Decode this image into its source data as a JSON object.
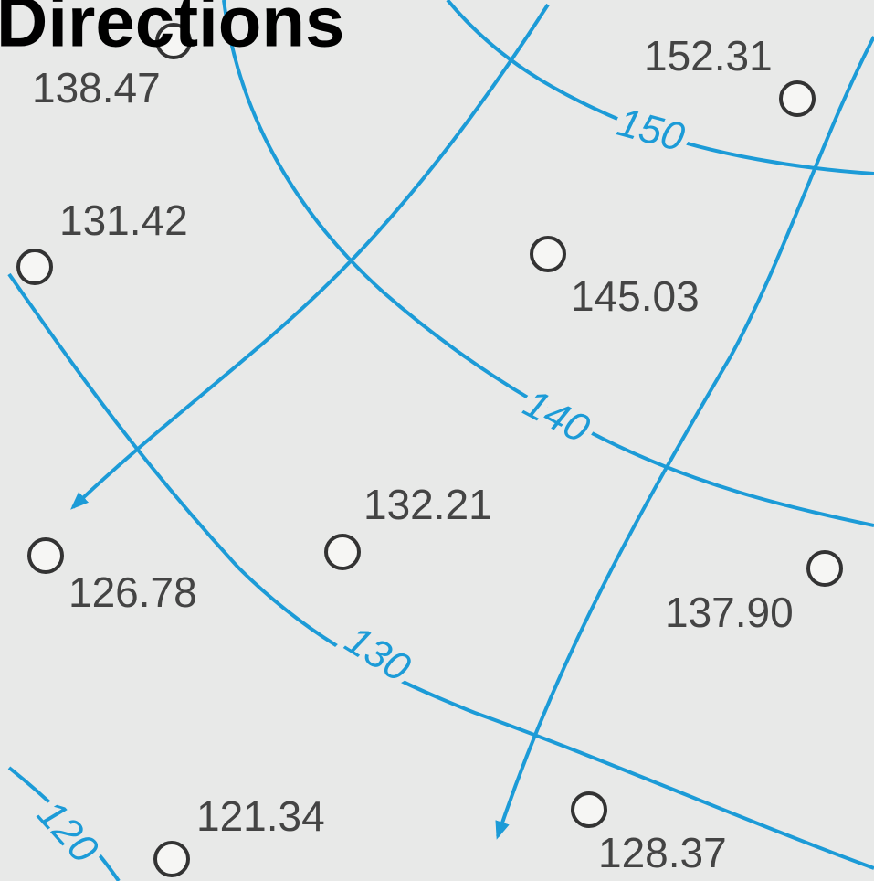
{
  "title": "Directions",
  "spot_heights": [
    {
      "label": "138.47"
    },
    {
      "label": "152.31"
    },
    {
      "label": "131.42"
    },
    {
      "label": "145.03"
    },
    {
      "label": "132.21"
    },
    {
      "label": "126.78"
    },
    {
      "label": "137.90"
    },
    {
      "label": "121.34"
    },
    {
      "label": "128.37"
    }
  ],
  "contours": [
    {
      "label": "150"
    },
    {
      "label": "140"
    },
    {
      "label": "130"
    },
    {
      "label": "120"
    }
  ]
}
